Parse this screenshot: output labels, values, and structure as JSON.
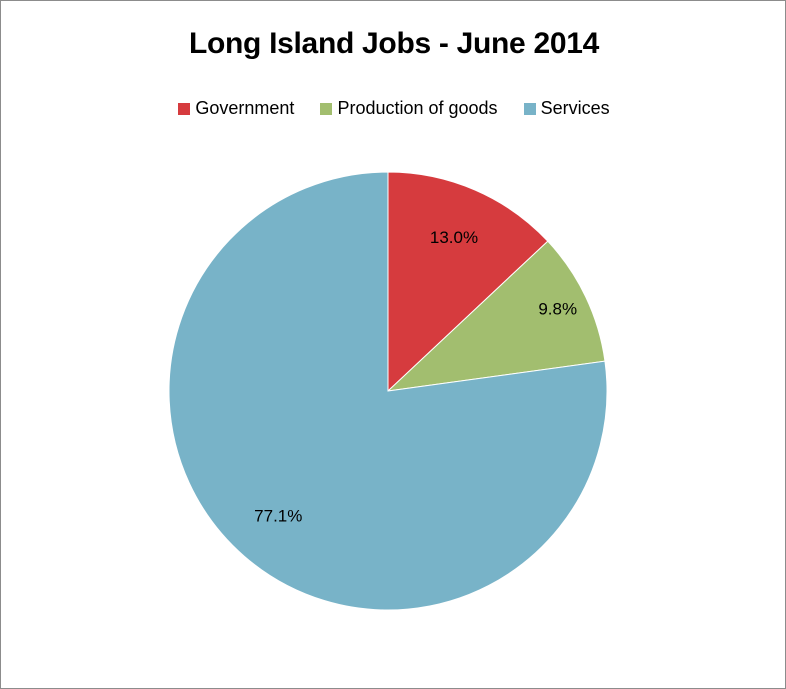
{
  "chart_data": {
    "type": "pie",
    "title": "Long Island Jobs - June 2014",
    "legend_position": "top",
    "series": [
      {
        "name": "Government",
        "value": 13.0,
        "label": "13.0%",
        "color": "#d63b3e"
      },
      {
        "name": "Production of goods",
        "value": 9.8,
        "label": "9.8%",
        "color": "#a2be6f"
      },
      {
        "name": "Services",
        "value": 77.1,
        "label": "77.1%",
        "color": "#78b3c8"
      }
    ]
  }
}
